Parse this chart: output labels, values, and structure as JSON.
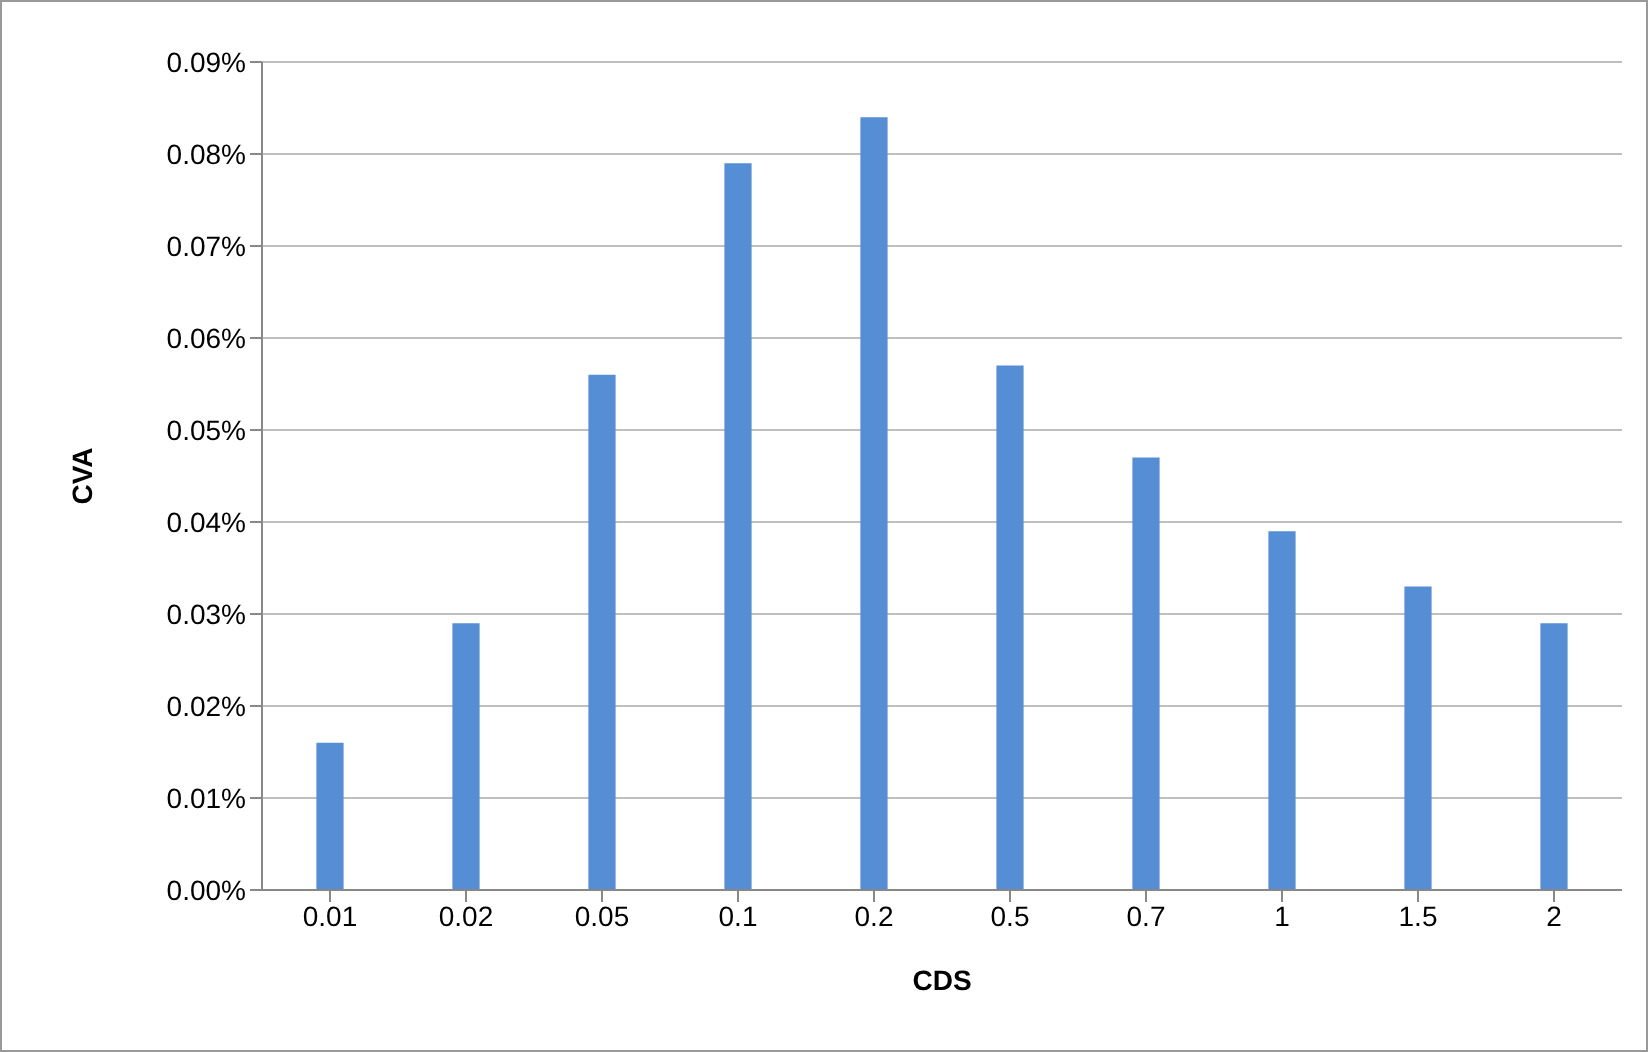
{
  "chart_data": {
    "type": "bar",
    "xlabel": "CDS",
    "ylabel": "CVA",
    "categories": [
      "0.01",
      "0.02",
      "0.05",
      "0.1",
      "0.2",
      "0.5",
      "0.7",
      "1",
      "1.5",
      "2"
    ],
    "values": [
      0.016,
      0.029,
      0.056,
      0.079,
      0.084,
      0.057,
      0.047,
      0.039,
      0.033,
      0.029
    ],
    "color": "#558ed5",
    "ylim": [
      0,
      0.09
    ],
    "yticks": [
      {
        "value": 0,
        "label": "0.00%"
      },
      {
        "value": 0.01,
        "label": "0.01%"
      },
      {
        "value": 0.02,
        "label": "0.02%"
      },
      {
        "value": 0.03,
        "label": "0.03%"
      },
      {
        "value": 0.04,
        "label": "0.04%"
      },
      {
        "value": 0.05,
        "label": "0.05%"
      },
      {
        "value": 0.06,
        "label": "0.06%"
      },
      {
        "value": 0.07,
        "label": "0.07%"
      },
      {
        "value": 0.08,
        "label": "0.08%"
      },
      {
        "value": 0.09,
        "label": "0.09%"
      }
    ],
    "grid": "y"
  }
}
